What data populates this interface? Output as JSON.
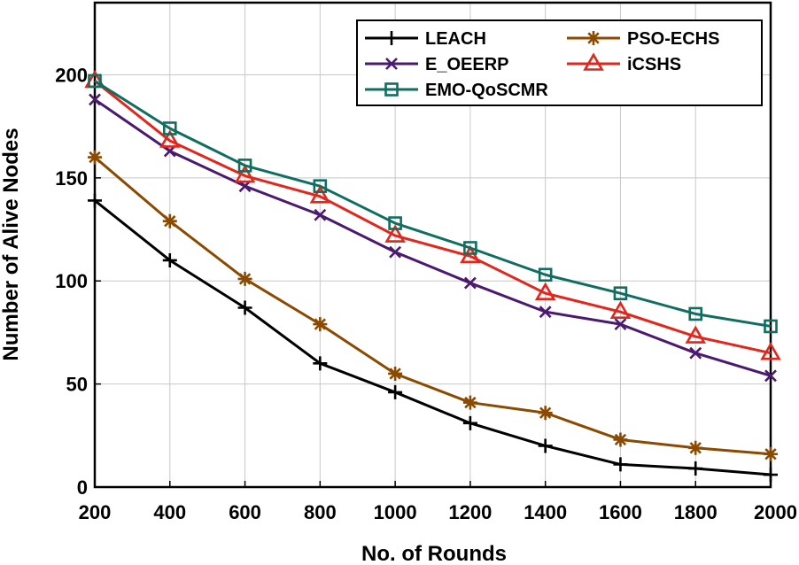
{
  "chart_data": {
    "type": "line",
    "title": "",
    "xlabel": "No. of Rounds",
    "ylabel": "Number of Alive Nodes",
    "x": [
      200,
      400,
      600,
      800,
      1000,
      1200,
      1400,
      1600,
      1800,
      2000
    ],
    "xlim": [
      200,
      2000
    ],
    "ylim": [
      0,
      235
    ],
    "xticks": [
      200,
      400,
      600,
      800,
      1000,
      1200,
      1400,
      1600,
      1800,
      2000
    ],
    "yticks": [
      0,
      50,
      100,
      150,
      200
    ],
    "grid": true,
    "legend_position": "top-right",
    "series": [
      {
        "name": "LEACH",
        "color": "#000000",
        "marker": "plus",
        "values": [
          139,
          110,
          87,
          60,
          46,
          31,
          20,
          11,
          9,
          6
        ]
      },
      {
        "name": "PSO-ECHS",
        "color": "#8b4a00",
        "marker": "asterisk",
        "values": [
          160,
          129,
          101,
          79,
          55,
          41,
          36,
          23,
          19,
          16
        ]
      },
      {
        "name": "E_OEERP",
        "color": "#4b1a6e",
        "marker": "x",
        "values": [
          188,
          163,
          146,
          132,
          114,
          99,
          85,
          79,
          65,
          54
        ]
      },
      {
        "name": "iCSHS",
        "color": "#e2261c",
        "marker": "triangle",
        "values": [
          197,
          168,
          151,
          141,
          122,
          112,
          94,
          85,
          73,
          65
        ]
      },
      {
        "name": "EMO-QoSCMR",
        "color": "#0f6e5f",
        "marker": "square",
        "values": [
          197,
          174,
          156,
          146,
          128,
          116,
          103,
          94,
          84,
          78
        ]
      }
    ]
  }
}
